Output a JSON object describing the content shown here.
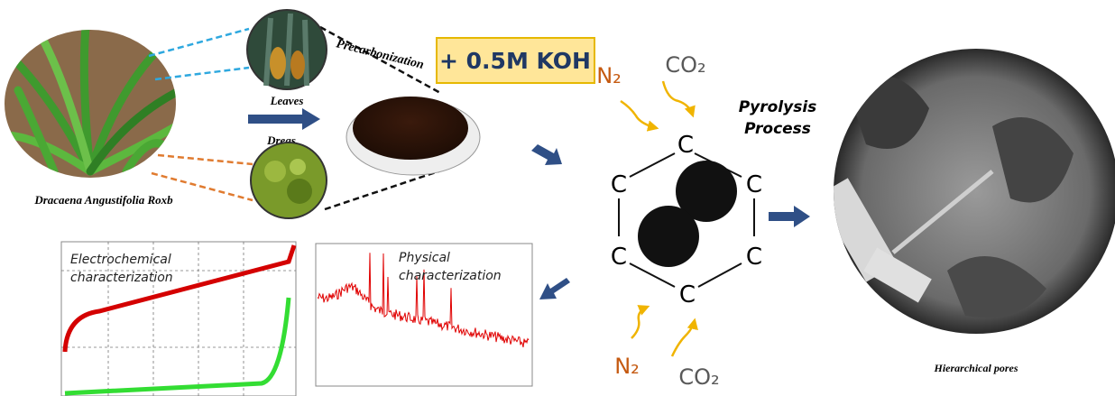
{
  "source": {
    "caption": "Dracaena Angustifolia Roxb",
    "leaves_label": "Leaves",
    "dregs_label": "Dregs"
  },
  "precarbonization": "Precarbonization",
  "activation": "+ 0.5M KOH",
  "pyrolysis": {
    "lines": [
      "Pyrolysis",
      "Process"
    ],
    "gases_top": [
      "N₂",
      "CO₂"
    ],
    "gases_bottom": [
      "N₂",
      "CO₂"
    ],
    "ring_atoms": [
      "C",
      "C",
      "C",
      "C",
      "C",
      "C"
    ]
  },
  "result": {
    "caption": "Hierarchical pores"
  },
  "characterization": {
    "electrochemical": [
      "Electrochemical",
      "characterization"
    ],
    "physical": [
      "Physical",
      "characterization"
    ]
  }
}
